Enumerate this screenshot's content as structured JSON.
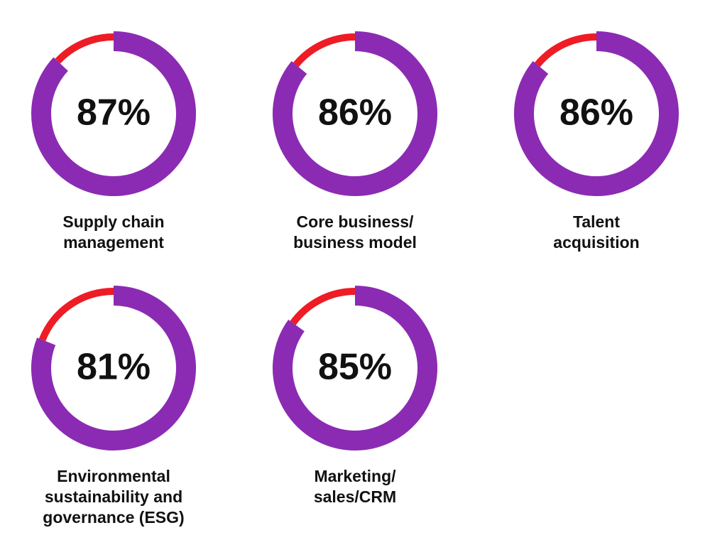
{
  "colors": {
    "completed_arc": "#8b2bb3",
    "remaining_arc": "#ee1c25",
    "text": "#111111",
    "background": "#ffffff"
  },
  "chart_data": [
    {
      "type": "donut",
      "value": 87,
      "value_label": "87%",
      "label_lines": [
        "Supply chain",
        "management"
      ]
    },
    {
      "type": "donut",
      "value": 86,
      "value_label": "86%",
      "label_lines": [
        "Core business/",
        "business model"
      ]
    },
    {
      "type": "donut",
      "value": 86,
      "value_label": "86%",
      "label_lines": [
        "Talent",
        "acquisition"
      ]
    },
    {
      "type": "donut",
      "value": 81,
      "value_label": "81%",
      "label_lines": [
        "Environmental",
        "sustainability and",
        "governance (ESG)"
      ]
    },
    {
      "type": "donut",
      "value": 85,
      "value_label": "85%",
      "label_lines": [
        "Marketing/",
        "sales/CRM"
      ]
    }
  ]
}
